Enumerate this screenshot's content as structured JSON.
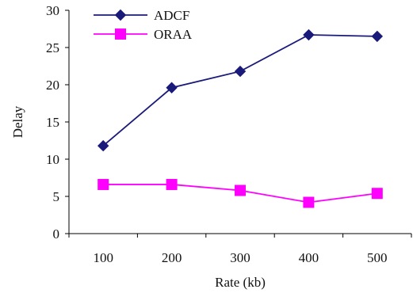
{
  "chart_data": {
    "type": "line",
    "x": [
      100,
      200,
      300,
      400,
      500
    ],
    "categories": [
      "100",
      "200",
      "300",
      "400",
      "500"
    ],
    "series": [
      {
        "name": "ADCF",
        "values": [
          11.8,
          19.6,
          21.8,
          26.7,
          26.5
        ],
        "color": "#1a1a7a",
        "marker": "diamond"
      },
      {
        "name": "ORAA",
        "values": [
          6.6,
          6.6,
          5.8,
          4.2,
          5.4
        ],
        "color": "#ff00ff",
        "marker": "square"
      }
    ],
    "xlabel": "Rate (kb)",
    "ylabel": "Delay",
    "ylim": [
      0,
      30
    ],
    "yticks": [
      "0",
      "5",
      "10",
      "15",
      "20",
      "25",
      "30"
    ],
    "grid": false,
    "legend_position": "top-left"
  }
}
